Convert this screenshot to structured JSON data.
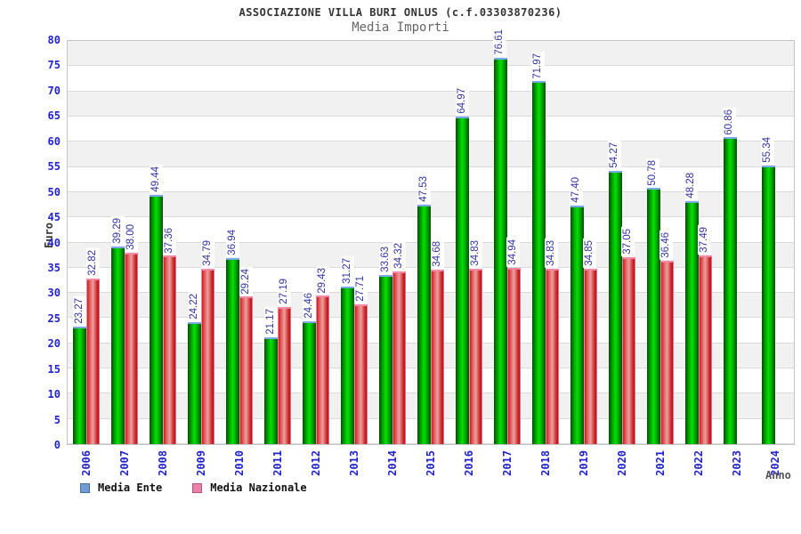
{
  "header": {
    "title": "ASSOCIAZIONE VILLA BURI ONLUS (c.f.03303870236)",
    "subtitle": "Media Importi"
  },
  "axes": {
    "y_label": "Euro",
    "x_label": "Anno"
  },
  "legend": {
    "items": [
      {
        "label": "Media Ente",
        "swatch_color": "#6f9cd4",
        "swatch_border": "#4a6f9e"
      },
      {
        "label": "Media Nazionale",
        "swatch_color": "#ec82ab",
        "swatch_border": "#b25679"
      }
    ]
  },
  "colors": {
    "tick_label": "#2222cc",
    "value_label": "#3434a2",
    "band_gray": "#f1f1f1",
    "gridline": "#dadada",
    "bar_green": "#00b300",
    "bar_red": "#d23030"
  },
  "chart_data": {
    "type": "bar",
    "title": "ASSOCIAZIONE VILLA BURI ONLUS (c.f.03303870236)",
    "subtitle": "Media Importi",
    "xlabel": "Anno",
    "ylabel": "Euro",
    "ylim": [
      0,
      80
    ],
    "ytick_step": 5,
    "grid": true,
    "background_bands": true,
    "legend_position": "bottom",
    "value_label_format": "2-decimals",
    "categories": [
      "2006",
      "2007",
      "2008",
      "2009",
      "2010",
      "2011",
      "2012",
      "2013",
      "2014",
      "2015",
      "2016",
      "2017",
      "2018",
      "2019",
      "2020",
      "2021",
      "2022",
      "2023",
      "2024"
    ],
    "series": [
      {
        "name": "Media Ente",
        "bar_color": "green",
        "values": [
          23.27,
          39.29,
          49.44,
          24.22,
          36.94,
          21.17,
          24.46,
          31.27,
          33.63,
          47.53,
          64.97,
          76.61,
          71.97,
          47.4,
          54.27,
          50.78,
          48.28,
          60.86,
          55.34
        ]
      },
      {
        "name": "Media Nazionale",
        "bar_color": "red",
        "values": [
          32.82,
          38.0,
          37.36,
          34.79,
          29.24,
          27.19,
          29.43,
          27.71,
          34.32,
          34.68,
          34.83,
          34.94,
          34.83,
          34.85,
          37.05,
          36.46,
          37.49,
          null,
          null
        ]
      }
    ]
  }
}
